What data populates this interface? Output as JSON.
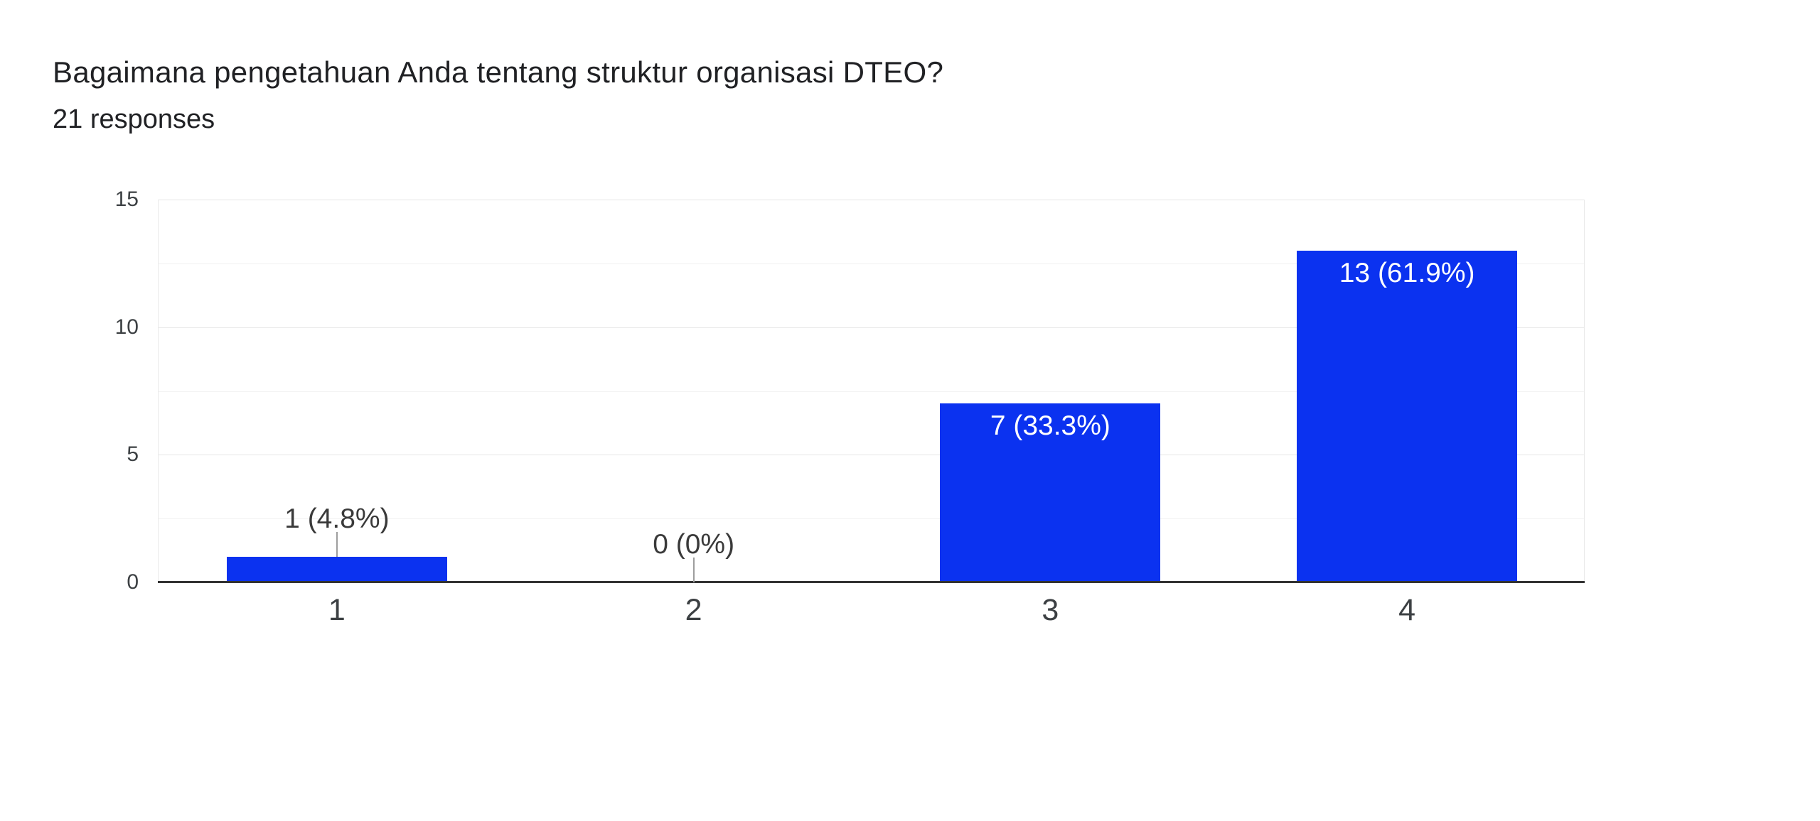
{
  "header": {
    "title": "Bagaimana pengetahuan Anda tentang struktur organisasi DTEO?",
    "subtitle": "21 responses"
  },
  "chart_data": {
    "type": "bar",
    "title": "Bagaimana pengetahuan Anda tentang struktur organisasi DTEO?",
    "subtitle": "21 responses",
    "categories": [
      "1",
      "2",
      "3",
      "4"
    ],
    "values": [
      1,
      0,
      7,
      13
    ],
    "bar_labels": [
      "1 (4.8%)",
      "0 (0%)",
      "7 (33.3%)",
      "13 (61.9%)"
    ],
    "xlabel": "",
    "ylabel": "",
    "ylim": [
      0,
      15
    ],
    "yticks": [
      0,
      5,
      10,
      15
    ],
    "minor_gridlines": [
      2.5,
      7.5,
      12.5
    ],
    "grid": true,
    "legend": "none"
  },
  "colors": {
    "bar": "#0b32f0",
    "baseline": "#333333",
    "grid_major": "#e6e6e6",
    "grid_minor": "#f2f2f2",
    "callout_stem": "#9e9e9e",
    "annotation_outside": "#3a3a3a",
    "annotation_inside": "#ffffff",
    "tick_text": "#3c4043",
    "title_text": "#202124"
  }
}
